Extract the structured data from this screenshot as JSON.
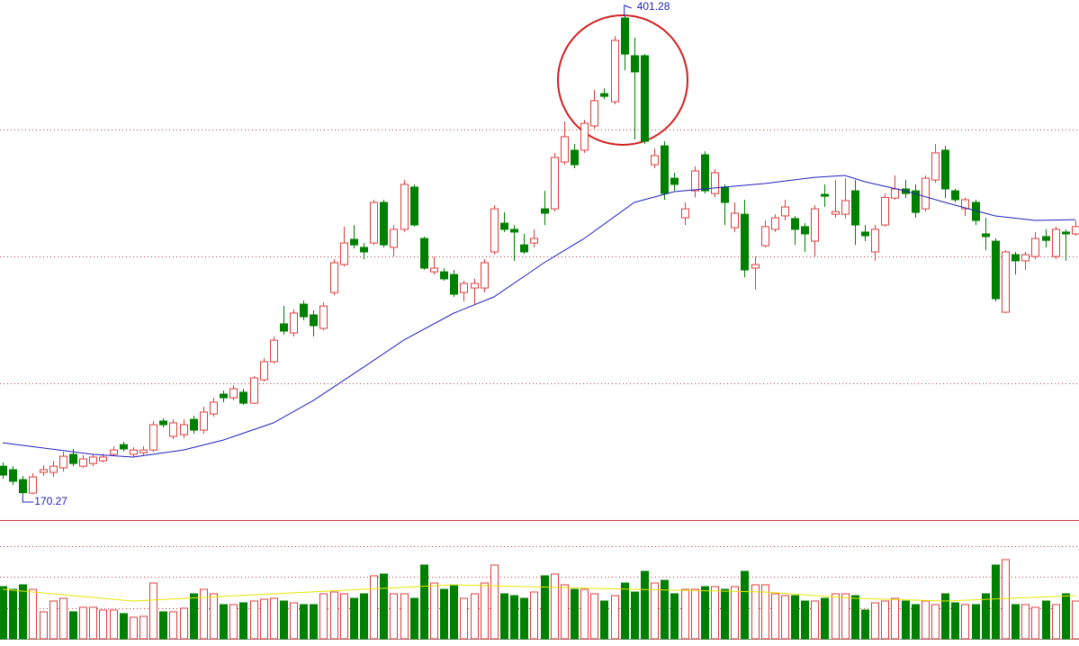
{
  "chart_data": {
    "type": "candlestick",
    "up_color": "#e03c3c",
    "down_color": "#008000",
    "ma_color": "#2020c0",
    "volume_ma_color": "#e6e600",
    "grid_color": "#c83c3c",
    "ylim": [
      158.1,
      409.1
    ],
    "grid_values": [
      346.6,
      285.3,
      224.1
    ],
    "max_label": 401.28,
    "min_label": 170.27,
    "open": [
      184.1,
      182.4,
      177.6,
      171.1,
      181.1,
      181.1,
      183.3,
      189.8,
      184.1,
      185.4,
      186.7,
      189.8,
      194.5,
      189.8,
      190.6,
      191.9,
      205.9,
      198.5,
      199.3,
      206.7,
      201.5,
      209.3,
      218.9,
      217.1,
      219.8,
      214.5,
      225.8,
      234.5,
      252.8,
      248.4,
      262.3,
      257.1,
      250.6,
      267.9,
      281.4,
      293.6,
      289.7,
      291.8,
      311.4,
      289.7,
      298.4,
      318.8,
      294.0,
      277.9,
      277.9,
      276.6,
      267.9,
      270.1,
      270.1,
      287.5,
      301.4,
      298.4,
      290.9,
      291.8,
      308.3,
      308.3,
      330.9,
      336.6,
      336.6,
      348.3,
      363.9,
      360.0,
      400.4,
      382.2,
      382.2,
      329.6,
      338.7,
      323.1,
      304.0,
      317.0,
      334.4,
      315.7,
      318.8,
      299.2,
      305.7,
      279.7,
      290.5,
      298.4,
      304.9,
      303.6,
      299.7,
      292.7,
      315.3,
      305.7,
      305.7,
      317.0,
      297.1,
      287.5,
      300.5,
      313.5,
      317.9,
      317.0,
      308.3,
      322.2,
      336.6,
      317.0,
      308.3,
      311.4,
      296.2,
      292.7,
      258.4,
      286.2,
      283.2,
      285.3,
      294.9,
      285.3,
      297.1,
      296.2
    ],
    "high": [
      185.9,
      184.1,
      179.4,
      180.7,
      184.6,
      186.7,
      191.1,
      192.4,
      189.4,
      189.8,
      190.2,
      193.7,
      195.9,
      193.2,
      193.7,
      205.9,
      207.2,
      206.7,
      206.7,
      208.5,
      212.8,
      217.1,
      220.6,
      223.2,
      221.5,
      227.6,
      236.2,
      246.7,
      261.4,
      259.7,
      264.0,
      259.3,
      263.2,
      284.0,
      299.7,
      300.5,
      291.8,
      312.7,
      312.7,
      300.5,
      322.2,
      320.1,
      294.9,
      285.3,
      279.7,
      278.8,
      273.6,
      274.5,
      284.0,
      310.1,
      306.6,
      300.5,
      296.2,
      298.4,
      317.0,
      335.3,
      350.5,
      339.6,
      351.3,
      365.7,
      366.5,
      391.7,
      401.28,
      390.9,
      383.0,
      337.4,
      340.9,
      325.7,
      311.4,
      328.8,
      336.1,
      327.5,
      320.1,
      311.4,
      312.7,
      285.3,
      302.7,
      305.7,
      312.7,
      304.9,
      301.4,
      310.1,
      320.1,
      322.2,
      323.1,
      322.2,
      300.5,
      300.5,
      315.7,
      324.4,
      322.2,
      320.1,
      324.4,
      339.6,
      338.7,
      317.9,
      313.8,
      312.7,
      304.0,
      294.0,
      288.4,
      287.5,
      287.5,
      297.1,
      298.4,
      299.7,
      298.4,
      302.7
    ],
    "low": [
      178.0,
      175.0,
      170.27,
      170.6,
      179.4,
      178.9,
      181.5,
      184.1,
      183.3,
      184.1,
      185.9,
      188.9,
      191.1,
      188.5,
      189.4,
      191.1,
      202.8,
      197.2,
      197.6,
      199.8,
      199.8,
      208.0,
      215.0,
      215.8,
      213.7,
      214.1,
      225.0,
      233.6,
      247.5,
      246.7,
      254.5,
      246.7,
      249.7,
      266.6,
      280.5,
      289.2,
      284.0,
      290.9,
      289.7,
      285.3,
      297.1,
      299.7,
      278.8,
      276.6,
      273.6,
      265.8,
      263.6,
      262.3,
      267.9,
      286.2,
      297.1,
      283.2,
      286.6,
      289.7,
      300.5,
      307.0,
      329.6,
      327.9,
      335.3,
      347.0,
      361.3,
      358.7,
      375.2,
      341.8,
      339.6,
      327.9,
      312.7,
      317.0,
      300.5,
      313.8,
      315.7,
      313.8,
      300.5,
      297.1,
      275.3,
      269.3,
      289.7,
      297.1,
      302.7,
      290.9,
      287.5,
      285.3,
      309.2,
      304.0,
      303.6,
      290.9,
      292.7,
      283.2,
      299.7,
      312.7,
      313.5,
      304.0,
      307.0,
      320.9,
      313.5,
      311.4,
      304.9,
      300.5,
      288.4,
      263.6,
      258.0,
      276.6,
      278.8,
      284.0,
      289.7,
      284.0,
      283.2,
      295.3
    ],
    "close": [
      179.8,
      176.8,
      171.3,
      178.9,
      182.4,
      184.1,
      188.9,
      185.4,
      187.6,
      188.5,
      188.5,
      191.9,
      192.4,
      191.9,
      191.9,
      204.1,
      204.1,
      205.0,
      204.1,
      201.5,
      210.2,
      215.0,
      217.1,
      221.5,
      214.5,
      226.7,
      234.5,
      244.9,
      249.3,
      258.0,
      256.2,
      251.9,
      261.4,
      282.3,
      291.8,
      290.9,
      287.5,
      311.4,
      290.9,
      298.4,
      320.1,
      300.5,
      279.7,
      279.7,
      274.5,
      267.1,
      272.3,
      272.3,
      282.3,
      308.3,
      298.4,
      297.1,
      287.5,
      294.0,
      306.2,
      333.1,
      343.1,
      329.6,
      349.6,
      360.5,
      362.6,
      389.6,
      383.0,
      374.4,
      340.9,
      334.0,
      315.7,
      320.1,
      308.3,
      326.6,
      317.0,
      325.7,
      311.4,
      306.2,
      278.8,
      281.4,
      299.7,
      304.0,
      309.2,
      298.4,
      296.2,
      308.3,
      314.4,
      307.0,
      312.3,
      300.5,
      295.3,
      298.4,
      313.8,
      317.9,
      315.7,
      306.6,
      323.1,
      335.3,
      317.9,
      312.7,
      312.7,
      302.7,
      294.9,
      264.9,
      287.5,
      283.2,
      286.2,
      294.0,
      293.1,
      298.4,
      296.2,
      299.7
    ],
    "ma": {
      "x": [
        0,
        9,
        13,
        18,
        22,
        27,
        31,
        36,
        40,
        45,
        49,
        54,
        58,
        63,
        67,
        72,
        76,
        81,
        84,
        86,
        90,
        94,
        99,
        103,
        107
      ],
      "values": [
        195.4,
        189.8,
        188.5,
        191.9,
        196.7,
        205.0,
        215.8,
        231.9,
        244.9,
        258.0,
        265.8,
        282.3,
        294.0,
        311.4,
        316.6,
        318.8,
        320.5,
        323.5,
        324.4,
        321.4,
        317.0,
        311.4,
        304.9,
        302.7,
        303.1
      ]
    },
    "volume_ylim": [
      0,
      132
    ],
    "volume_grid_values": [
      103,
      69,
      34
    ],
    "volume": [
      58,
      55,
      60,
      55,
      30,
      42,
      45,
      30,
      35,
      35,
      32,
      32,
      28,
      24,
      25,
      62,
      30,
      30,
      34,
      50,
      55,
      50,
      38,
      38,
      40,
      42,
      44,
      45,
      42,
      40,
      38,
      38,
      50,
      52,
      50,
      45,
      50,
      70,
      72,
      50,
      50,
      45,
      82,
      62,
      55,
      60,
      45,
      50,
      62,
      82,
      50,
      48,
      45,
      52,
      70,
      72,
      60,
      55,
      55,
      50,
      42,
      48,
      62,
      52,
      75,
      62,
      65,
      50,
      55,
      55,
      58,
      58,
      55,
      58,
      75,
      60,
      60,
      50,
      48,
      48,
      42,
      42,
      45,
      50,
      50,
      48,
      32,
      40,
      42,
      45,
      42,
      38,
      42,
      38,
      50,
      40,
      38,
      38,
      50,
      82,
      88,
      38,
      38,
      35,
      42,
      38,
      50,
      42
    ],
    "volume_ma": {
      "x": [
        0,
        13,
        27,
        45,
        63,
        76,
        85,
        94,
        107
      ],
      "values": [
        55,
        42,
        50,
        60,
        55,
        52,
        45,
        42,
        48
      ]
    }
  }
}
